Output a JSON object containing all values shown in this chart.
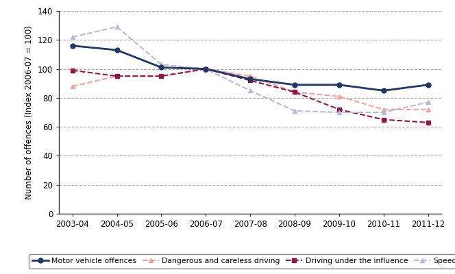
{
  "years": [
    "2003-04",
    "2004-05",
    "2005-06",
    "2006-07",
    "2007-08",
    "2008-09",
    "2009-10",
    "2010-11",
    "2011-12"
  ],
  "motor_vehicle": [
    116,
    113,
    101,
    100,
    93,
    89,
    89,
    85,
    89
  ],
  "dangerous_careless": [
    88,
    95,
    95,
    100,
    95,
    84,
    81,
    72,
    72
  ],
  "driving_under_influence": [
    99,
    95,
    95,
    100,
    92,
    84,
    72,
    65,
    63
  ],
  "speeding": [
    122,
    129,
    103,
    100,
    85,
    71,
    70,
    70,
    77
  ],
  "motor_vehicle_color": "#1f3864",
  "dangerous_careless_color": "#f4a0a0",
  "driving_under_influence_color": "#8b1a4a",
  "speeding_color": "#b8b8d8",
  "ylabel": "Number of offences (Index 2006-07 = 100)",
  "ylim": [
    0,
    140
  ],
  "yticks": [
    0,
    20,
    40,
    60,
    80,
    100,
    120,
    140
  ],
  "legend_labels": [
    "Motor vehicle offences",
    "Dangerous and careless driving",
    "Driving under the influence",
    "Speeding"
  ],
  "grid_color": "#aaaaaa",
  "bg_color": "#ffffff"
}
